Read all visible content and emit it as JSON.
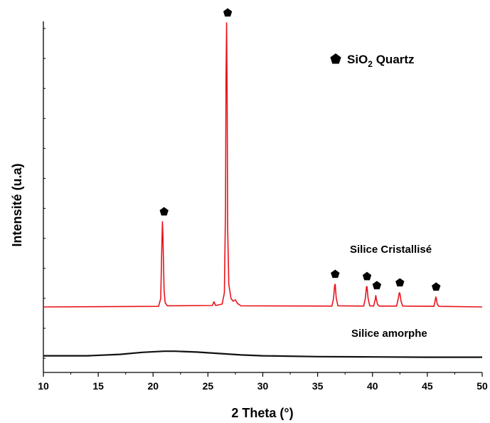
{
  "chart_data": {
    "type": "line",
    "xlabel": "2 Theta (°)",
    "ylabel": "Intensité (u.a)",
    "xlim": [
      10,
      50
    ],
    "xticks": [
      10,
      15,
      20,
      25,
      30,
      35,
      40,
      45,
      50
    ],
    "y_ticks_labeled": false,
    "grid": false,
    "legend": {
      "marker": "pentagon",
      "text_main": "SiO",
      "text_sub": "2",
      "text_tail": " Quartz",
      "placement": "top-right"
    },
    "colors": {
      "crystalline": "#e8141b",
      "amorphous": "#111111",
      "marker": "#000000"
    },
    "series": [
      {
        "name": "Silice Cristallisé",
        "color": "#e8141b",
        "x": [
          10,
          20.5,
          20.7,
          20.8,
          20.85,
          20.9,
          21.0,
          21.1,
          21.3,
          25.4,
          25.55,
          25.7,
          26.3,
          26.5,
          26.6,
          26.65,
          26.7,
          26.75,
          26.8,
          26.9,
          27.1,
          27.3,
          27.5,
          27.7,
          28.0,
          36.3,
          36.45,
          36.55,
          36.6,
          36.7,
          36.85,
          39.2,
          39.35,
          39.45,
          39.5,
          39.6,
          39.75,
          40.1,
          40.25,
          40.3,
          40.35,
          40.45,
          40.6,
          42.2,
          42.35,
          42.45,
          42.5,
          42.6,
          42.75,
          45.6,
          45.7,
          45.78,
          45.82,
          45.9,
          46.05,
          50
        ],
        "y": [
          0,
          0.2,
          3,
          22,
          30,
          25,
          6,
          1.5,
          0.4,
          0.5,
          1.8,
          0.5,
          1,
          5,
          35,
          80,
          100,
          75,
          28,
          8,
          3,
          2,
          2.5,
          1.2,
          0.4,
          0.3,
          3,
          7.5,
          8,
          3,
          0.4,
          0.3,
          3,
          7,
          7.2,
          3,
          0.4,
          0.3,
          2.5,
          4,
          3,
          1,
          0.3,
          0.3,
          3,
          5,
          4.8,
          2,
          0.3,
          0.2,
          2,
          3.5,
          3,
          1,
          0.2,
          0
        ]
      },
      {
        "name": "Silice amorphe",
        "color": "#111111",
        "x": [
          10,
          14,
          17,
          19,
          21,
          22,
          24,
          26,
          28,
          30,
          35,
          40,
          45,
          50
        ],
        "y": [
          -17.2,
          -17.2,
          -16.7,
          -16.0,
          -15.6,
          -15.6,
          -15.9,
          -16.4,
          -16.9,
          -17.2,
          -17.5,
          -17.6,
          -17.7,
          -17.7
        ]
      }
    ],
    "peaks_marked": [
      21.0,
      26.8,
      36.6,
      39.5,
      40.4,
      42.5,
      45.8
    ],
    "annotations": [
      "Silice Cristallisé",
      "Silice amorphe"
    ]
  }
}
